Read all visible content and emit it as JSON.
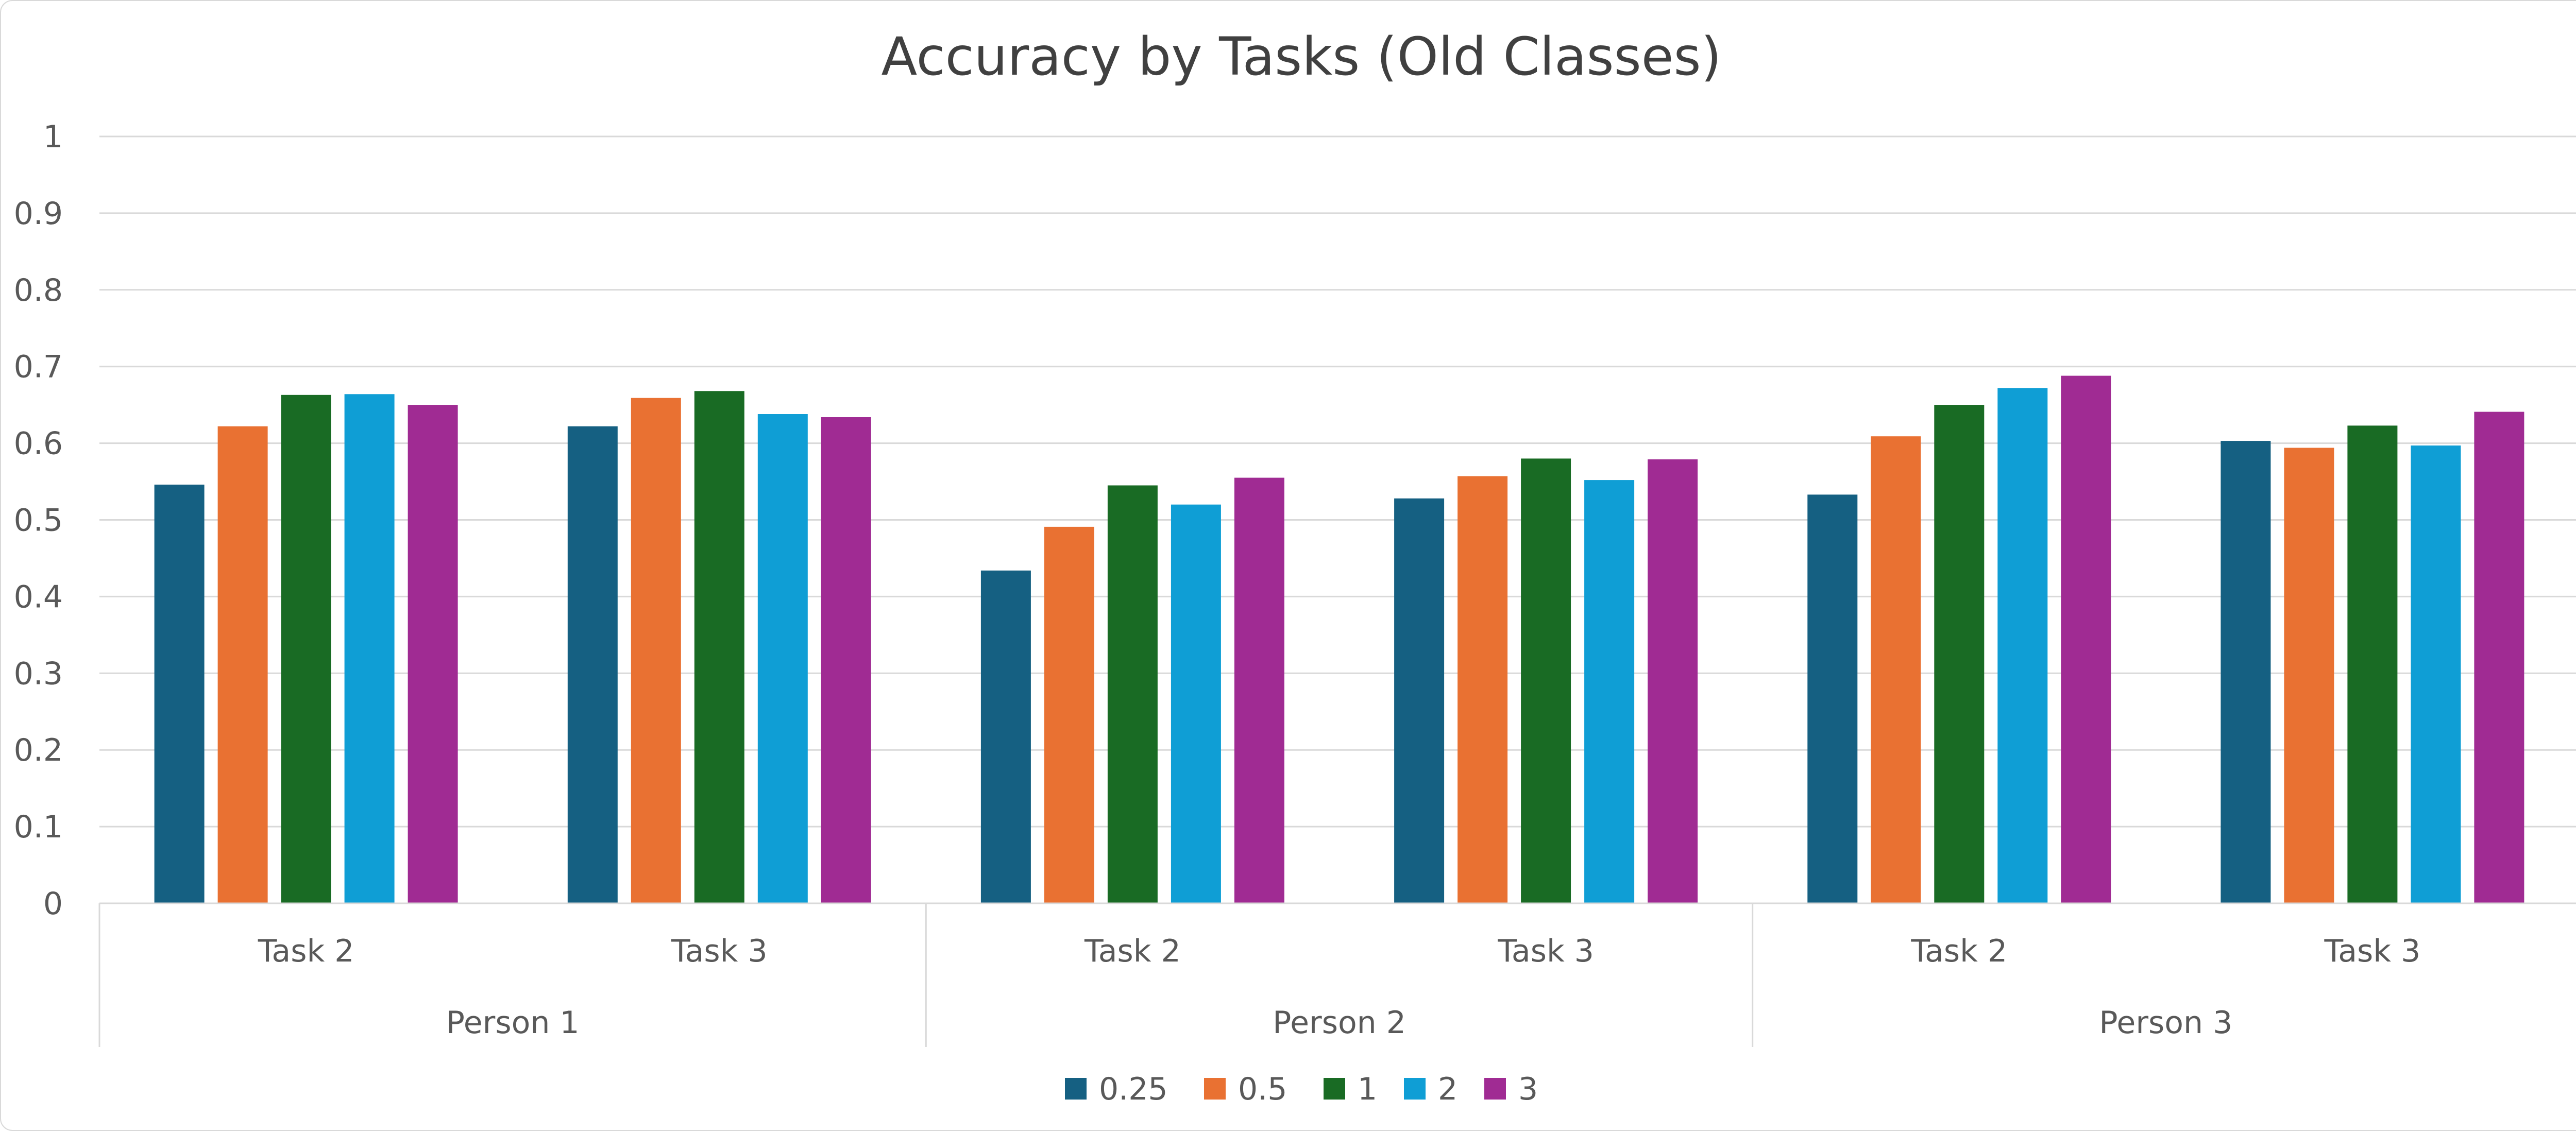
{
  "chart_data": {
    "type": "bar",
    "title": "Accuracy by Tasks (Old Classes)",
    "xlabel": "",
    "ylabel": "",
    "ylim": [
      0,
      1
    ],
    "y_ticks": [
      "0",
      "0.1",
      "0.2",
      "0.3",
      "0.4",
      "0.5",
      "0.6",
      "0.7",
      "0.8",
      "0.9",
      "1"
    ],
    "grid": true,
    "legend_position": "bottom",
    "groups": [
      "Person 1",
      "Person 2",
      "Person 3"
    ],
    "categories": [
      {
        "label": "Task 2",
        "group": "Person 1"
      },
      {
        "label": "Task 3",
        "group": "Person 1"
      },
      {
        "label": "Task 2",
        "group": "Person 2"
      },
      {
        "label": "Task 3",
        "group": "Person 2"
      },
      {
        "label": "Task 2",
        "group": "Person 3"
      },
      {
        "label": "Task 3",
        "group": "Person 3"
      }
    ],
    "series": [
      {
        "name": "0.25",
        "color": "#156082",
        "values": [
          0.546,
          0.622,
          0.434,
          0.528,
          0.533,
          0.603
        ]
      },
      {
        "name": "0.5",
        "color": "#E97132",
        "values": [
          0.622,
          0.659,
          0.491,
          0.557,
          0.609,
          0.594
        ]
      },
      {
        "name": "1",
        "color": "#196B24",
        "values": [
          0.663,
          0.668,
          0.545,
          0.58,
          0.65,
          0.623
        ]
      },
      {
        "name": "2",
        "color": "#0F9ED5",
        "values": [
          0.664,
          0.638,
          0.52,
          0.552,
          0.672,
          0.597
        ]
      },
      {
        "name": "3",
        "color": "#A02B93",
        "values": [
          0.65,
          0.634,
          0.555,
          0.579,
          0.688,
          0.641
        ]
      }
    ]
  }
}
